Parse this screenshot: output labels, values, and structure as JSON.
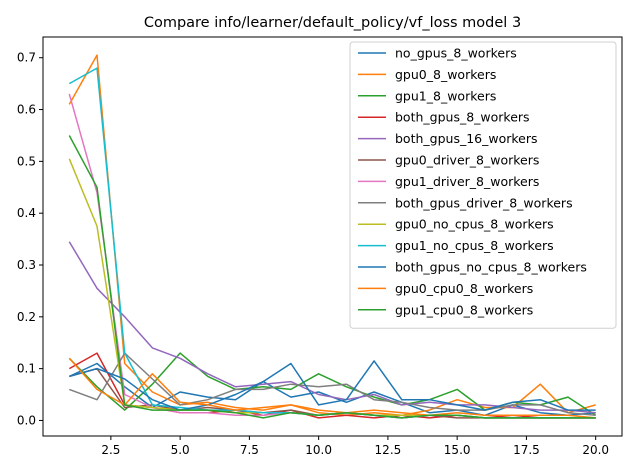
{
  "chart_data": {
    "type": "line",
    "title": "Compare info/learner/default_policy/vf_loss model 3",
    "xlabel": "",
    "ylabel": "",
    "xlim": [
      0.05,
      20.95
    ],
    "ylim": [
      -0.03,
      0.74
    ],
    "xticks": [
      2.5,
      5.0,
      7.5,
      10.0,
      12.5,
      15.0,
      17.5,
      20.0
    ],
    "xtick_labels": [
      "2.5",
      "5.0",
      "7.5",
      "10.0",
      "12.5",
      "15.0",
      "17.5",
      "20.0"
    ],
    "yticks": [
      0.0,
      0.1,
      0.2,
      0.3,
      0.4,
      0.5,
      0.6,
      0.7
    ],
    "ytick_labels": [
      "0.0",
      "0.1",
      "0.2",
      "0.3",
      "0.4",
      "0.5",
      "0.6",
      "0.7"
    ],
    "grid": false,
    "legend_position": "upper-right",
    "x": [
      1,
      2,
      3,
      4,
      5,
      6,
      7,
      8,
      9,
      10,
      11,
      12,
      13,
      14,
      15,
      16,
      17,
      18,
      19,
      20
    ],
    "series": [
      {
        "name": "no_gpus_8_workers",
        "color": "#1f77b4",
        "values": [
          0.085,
          0.11,
          0.065,
          0.025,
          0.055,
          0.045,
          0.04,
          0.075,
          0.045,
          0.055,
          0.035,
          0.055,
          0.035,
          0.015,
          0.02,
          0.01,
          0.03,
          0.015,
          0.01,
          0.015
        ]
      },
      {
        "name": "gpu0_8_workers",
        "color": "#ff7f0e",
        "values": [
          0.61,
          0.705,
          0.11,
          0.055,
          0.03,
          0.035,
          0.025,
          0.02,
          0.03,
          0.015,
          0.01,
          0.015,
          0.01,
          0.02,
          0.04,
          0.025,
          0.025,
          0.07,
          0.015,
          0.03
        ]
      },
      {
        "name": "gpu1_8_workers",
        "color": "#2ca02c",
        "values": [
          0.12,
          0.065,
          0.02,
          0.07,
          0.13,
          0.085,
          0.06,
          0.065,
          0.06,
          0.09,
          0.065,
          0.045,
          0.03,
          0.04,
          0.06,
          0.02,
          0.035,
          0.03,
          0.045,
          0.01
        ]
      },
      {
        "name": "both_gpus_8_workers",
        "color": "#d62728",
        "values": [
          0.1,
          0.13,
          0.03,
          0.025,
          0.015,
          0.015,
          0.02,
          0.01,
          0.02,
          0.005,
          0.01,
          0.005,
          0.01,
          0.005,
          0.01,
          0.005,
          0.01,
          0.005,
          0.005,
          0.005
        ]
      },
      {
        "name": "both_gpus_16_workers",
        "color": "#9467bd",
        "values": [
          0.345,
          0.255,
          0.2,
          0.14,
          0.12,
          0.09,
          0.065,
          0.07,
          0.075,
          0.05,
          0.04,
          0.05,
          0.03,
          0.035,
          0.03,
          0.03,
          0.025,
          0.02,
          0.02,
          0.015
        ]
      },
      {
        "name": "gpu0_driver_8_workers",
        "color": "#8c564b",
        "values": [
          0.085,
          0.1,
          0.025,
          0.03,
          0.02,
          0.025,
          0.02,
          0.015,
          0.02,
          0.01,
          0.015,
          0.01,
          0.005,
          0.01,
          0.005,
          0.005,
          0.005,
          0.005,
          0.005,
          0.005
        ]
      },
      {
        "name": "gpu1_driver_8_workers",
        "color": "#e377c2",
        "values": [
          0.63,
          0.44,
          0.05,
          0.025,
          0.015,
          0.015,
          0.01,
          0.01,
          0.015,
          0.01,
          0.015,
          0.01,
          0.005,
          0.01,
          0.01,
          0.005,
          0.005,
          0.005,
          0.005,
          0.005
        ]
      },
      {
        "name": "both_gpus_driver_8_workers",
        "color": "#7f7f7f",
        "values": [
          0.06,
          0.04,
          0.13,
          0.08,
          0.03,
          0.04,
          0.06,
          0.06,
          0.07,
          0.065,
          0.07,
          0.04,
          0.035,
          0.025,
          0.02,
          0.02,
          0.03,
          0.03,
          0.015,
          0.01
        ]
      },
      {
        "name": "gpu0_no_cpus_8_workers",
        "color": "#bcbd22",
        "values": [
          0.505,
          0.375,
          0.03,
          0.025,
          0.02,
          0.02,
          0.015,
          0.015,
          0.015,
          0.01,
          0.015,
          0.01,
          0.01,
          0.01,
          0.01,
          0.005,
          0.005,
          0.005,
          0.005,
          0.005
        ]
      },
      {
        "name": "gpu1_no_cpus_8_workers",
        "color": "#17becf",
        "values": [
          0.65,
          0.68,
          0.13,
          0.03,
          0.025,
          0.02,
          0.02,
          0.015,
          0.015,
          0.01,
          0.015,
          0.01,
          0.005,
          0.01,
          0.01,
          0.005,
          0.005,
          0.005,
          0.005,
          0.005
        ]
      },
      {
        "name": "both_gpus_no_cpus_8_workers",
        "color": "#1f77b4",
        "values": [
          0.085,
          0.1,
          0.08,
          0.04,
          0.02,
          0.03,
          0.05,
          0.075,
          0.11,
          0.03,
          0.04,
          0.115,
          0.04,
          0.04,
          0.03,
          0.02,
          0.035,
          0.04,
          0.02,
          0.02
        ]
      },
      {
        "name": "gpu0_cpu0_8_workers",
        "color": "#ff7f0e",
        "values": [
          0.12,
          0.06,
          0.03,
          0.09,
          0.035,
          0.03,
          0.02,
          0.025,
          0.03,
          0.02,
          0.015,
          0.02,
          0.015,
          0.01,
          0.015,
          0.01,
          0.01,
          0.01,
          0.01,
          0.005
        ]
      },
      {
        "name": "gpu1_cpu0_8_workers",
        "color": "#2ca02c",
        "values": [
          0.55,
          0.45,
          0.03,
          0.02,
          0.02,
          0.02,
          0.015,
          0.005,
          0.015,
          0.01,
          0.015,
          0.01,
          0.005,
          0.01,
          0.01,
          0.005,
          0.005,
          0.005,
          0.005,
          0.005
        ]
      }
    ]
  }
}
